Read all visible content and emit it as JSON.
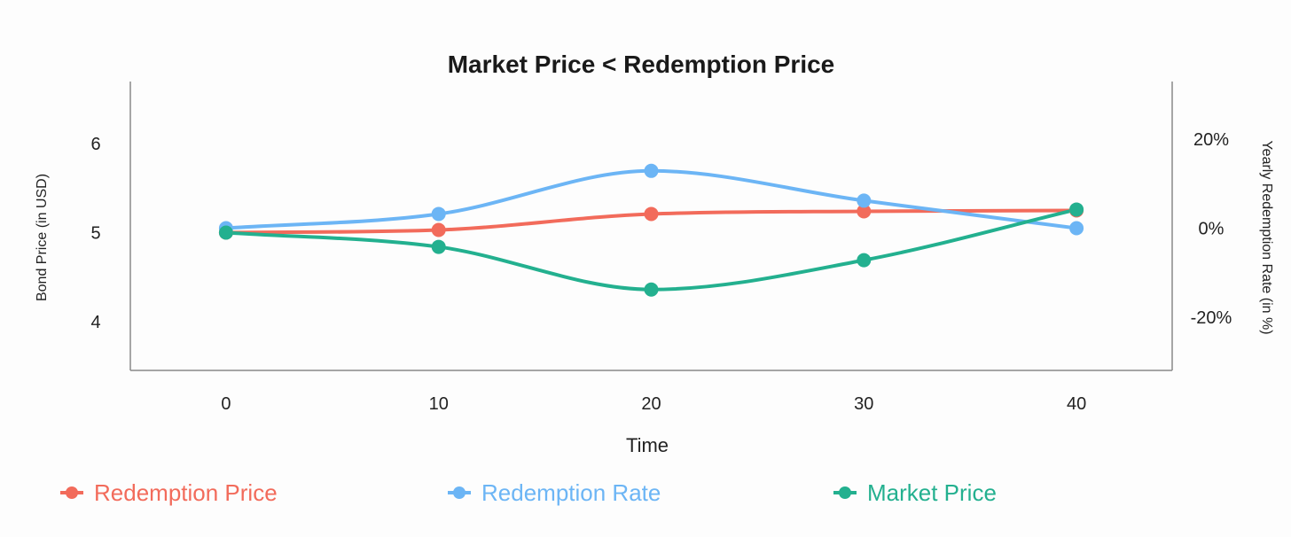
{
  "chart_data": {
    "type": "line",
    "title": "Market Price < Redemption Price",
    "xlabel": "Time",
    "ylabel_left": "Bond Price (in USD)",
    "ylabel_right": "Yearly Redemption Rate (in %)",
    "x": [
      0,
      10,
      20,
      30,
      40
    ],
    "x_ticks": [
      "0",
      "10",
      "20",
      "30",
      "40"
    ],
    "left_ticks": [
      {
        "value": 4,
        "label": "4"
      },
      {
        "value": 5,
        "label": "5"
      },
      {
        "value": 6,
        "label": "6"
      }
    ],
    "right_ticks": [
      {
        "value": -20,
        "label": "-20%"
      },
      {
        "value": 0,
        "label": "0%"
      },
      {
        "value": 20,
        "label": "20%"
      }
    ],
    "ylim_left": [
      3.45,
      6.7
    ],
    "ylim_right": [
      -32,
      33
    ],
    "xlim": [
      -4.5,
      44.5
    ],
    "grid": false,
    "legend_position": "bottom",
    "series": [
      {
        "name": "Redemption Price",
        "axis": "left",
        "color": "#f26b5b",
        "values": [
          5.0,
          5.03,
          5.21,
          5.24,
          5.25
        ]
      },
      {
        "name": "Redemption Rate",
        "axis": "right",
        "color": "#6cb5f5",
        "values": [
          0,
          3.2,
          12.9,
          6.2,
          0
        ]
      },
      {
        "name": "Market Price",
        "axis": "left",
        "color": "#23b08f",
        "values": [
          5.0,
          4.84,
          4.36,
          4.69,
          5.26
        ]
      }
    ]
  }
}
